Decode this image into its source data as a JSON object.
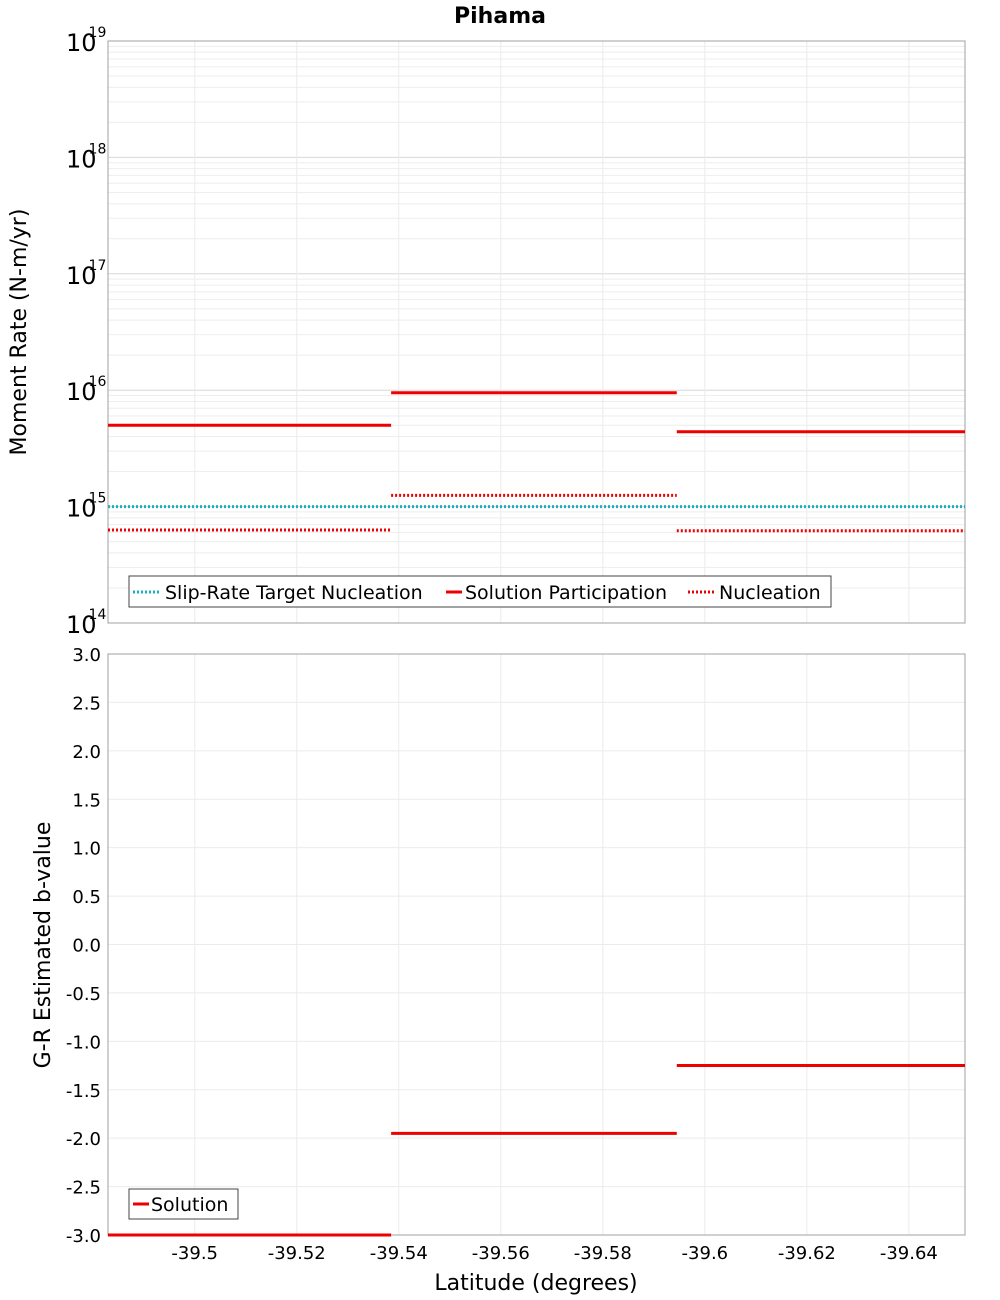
{
  "chart_data": [
    {
      "type": "line",
      "title": "Pihama",
      "xlabel": "Latitude (degrees)",
      "ylabel": "Moment Rate (N-m/yr)",
      "yscale": "log",
      "ylim": [
        100000000000000.0,
        1e+19
      ],
      "xlim": [
        -39.483,
        -39.651
      ],
      "xticks": [
        -39.5,
        -39.52,
        -39.54,
        -39.56,
        -39.58,
        -39.6,
        -39.62,
        -39.64
      ],
      "ytick_base": "10",
      "ytick_exponents": [
        "14",
        "15",
        "16",
        "17",
        "18",
        "19"
      ],
      "legend": [
        "Slip-Rate Target Nucleation",
        "Solution Participation",
        "Nucleation"
      ],
      "legend_position": "bottom-left",
      "series": [
        {
          "name": "Slip-Rate Target Nucleation",
          "style": "dotted",
          "color": "#1ab0c0",
          "segments": [
            {
              "x0": -39.483,
              "x1": -39.651,
              "y": 1000000000000000.0
            }
          ]
        },
        {
          "name": "Solution Participation",
          "style": "solid",
          "color": "#ee0000",
          "segments": [
            {
              "x0": -39.483,
              "x1": -39.5385,
              "y": 5000000000000000.0
            },
            {
              "x0": -39.5385,
              "x1": -39.5945,
              "y": 9500000000000000.0
            },
            {
              "x0": -39.5945,
              "x1": -39.651,
              "y": 4400000000000000.0
            }
          ]
        },
        {
          "name": "Nucleation",
          "style": "dotted",
          "color": "#ee0000",
          "segments": [
            {
              "x0": -39.483,
              "x1": -39.5385,
              "y": 630000000000000.0
            },
            {
              "x0": -39.5385,
              "x1": -39.5945,
              "y": 1250000000000000.0
            },
            {
              "x0": -39.5945,
              "x1": -39.651,
              "y": 620000000000000.0
            }
          ]
        }
      ]
    },
    {
      "type": "line",
      "title": "",
      "xlabel": "Latitude (degrees)",
      "ylabel": "G-R Estimated b-value",
      "ylim": [
        -3.0,
        3.0
      ],
      "xlim": [
        -39.483,
        -39.651
      ],
      "yticks": [
        "3.0",
        "2.5",
        "2.0",
        "1.5",
        "1.0",
        "0.5",
        "0.0",
        "-0.5",
        "-1.0",
        "-1.5",
        "-2.0",
        "-2.5",
        "-3.0"
      ],
      "xticks": [
        "-39.5",
        "-39.52",
        "-39.54",
        "-39.56",
        "-39.58",
        "-39.6",
        "-39.62",
        "-39.64"
      ],
      "legend": [
        "Solution"
      ],
      "legend_position": "bottom-left",
      "series": [
        {
          "name": "Solution",
          "style": "solid",
          "color": "#ee0000",
          "segments": [
            {
              "x0": -39.483,
              "x1": -39.5385,
              "y": -3.0
            },
            {
              "x0": -39.5385,
              "x1": -39.5945,
              "y": -1.95
            },
            {
              "x0": -39.5945,
              "x1": -39.651,
              "y": -1.25
            }
          ]
        }
      ]
    }
  ]
}
